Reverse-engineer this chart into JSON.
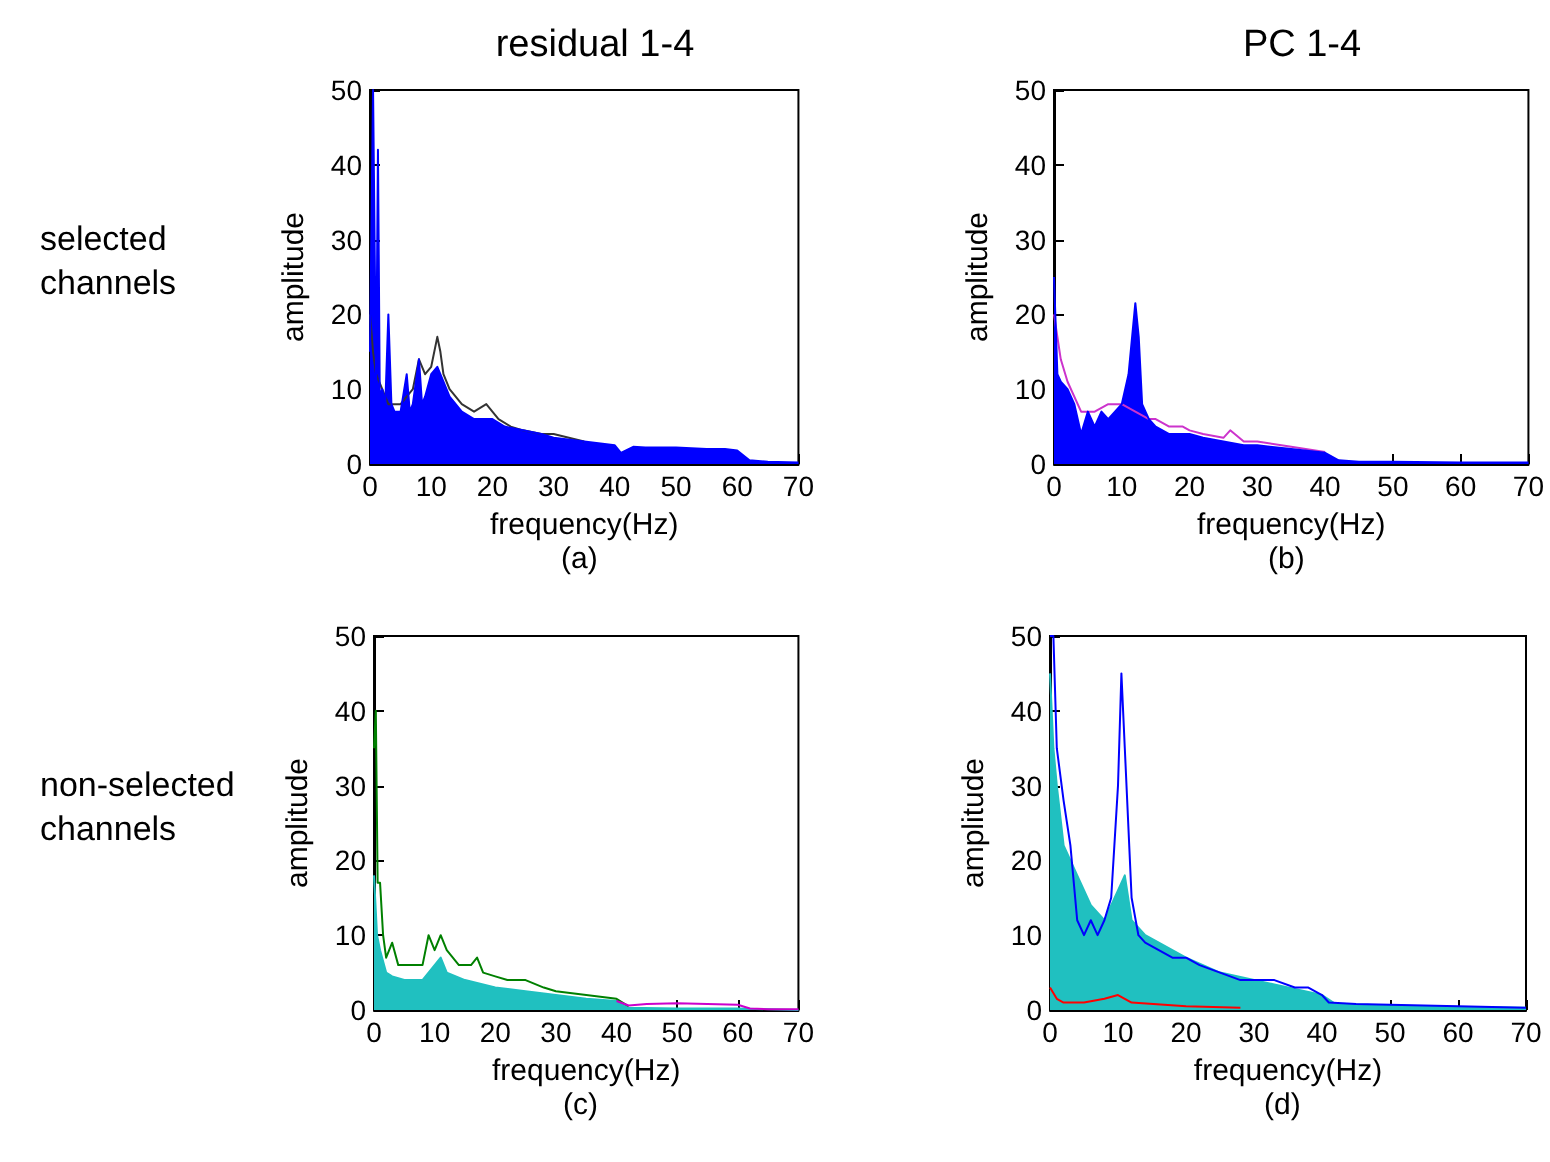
{
  "chart_data": [
    {
      "type": "area",
      "title": "residual 1-4",
      "xlabel": "frequency(Hz)",
      "ylabel": "amplitude",
      "annotations": [
        "(a)",
        "selected channels"
      ],
      "xlim": [
        0,
        70
      ],
      "ylim": [
        0,
        50
      ],
      "xticks": [
        0,
        10,
        20,
        30,
        40,
        50,
        60,
        70
      ],
      "yticks": [
        0,
        10,
        20,
        30,
        40,
        50
      ],
      "series": [
        {
          "type": "line",
          "color": "#333333",
          "x": [
            0,
            0.5,
            1,
            2,
            3,
            5,
            7,
            8,
            9,
            10,
            11,
            11.5,
            12,
            13,
            15,
            17,
            19,
            20,
            21,
            23,
            25,
            28,
            30,
            35
          ],
          "values": [
            20,
            15,
            12,
            10,
            8,
            8,
            10,
            14,
            12,
            13,
            17,
            15,
            12,
            10,
            8,
            7,
            8,
            7,
            6,
            5,
            4.5,
            4,
            4,
            3
          ]
        },
        {
          "color": "#0000ff",
          "x": [
            0,
            0.5,
            1,
            1.3,
            1.6,
            2,
            2.5,
            3,
            3.5,
            4,
            5,
            6,
            6.5,
            7,
            8,
            8.5,
            9,
            10,
            11,
            12,
            13,
            14,
            15,
            17,
            18,
            20,
            22,
            25,
            28,
            30,
            35,
            40,
            41,
            43,
            45,
            50,
            55,
            58,
            60,
            62,
            65,
            70
          ],
          "values": [
            15,
            50,
            10,
            42,
            9,
            10,
            8,
            20,
            8,
            7,
            7,
            12,
            7,
            8,
            14,
            8,
            9,
            12,
            13,
            11,
            9,
            8,
            7,
            6,
            6,
            6,
            5,
            4.5,
            4,
            3.5,
            3,
            2.5,
            1.5,
            2.3,
            2.2,
            2.2,
            2,
            2,
            1.8,
            0.5,
            0.3,
            0.2
          ]
        }
      ]
    },
    {
      "type": "area",
      "title": "PC 1-4",
      "xlabel": "frequency(Hz)",
      "ylabel": "amplitude",
      "annotations": [
        "(b)"
      ],
      "xlim": [
        0,
        70
      ],
      "ylim": [
        0,
        50
      ],
      "xticks": [
        0,
        10,
        20,
        30,
        40,
        50,
        60,
        70
      ],
      "yticks": [
        0,
        10,
        20,
        30,
        40,
        50
      ],
      "series": [
        {
          "type": "line",
          "color": "#cc33cc",
          "x": [
            0,
            1,
            2,
            4,
            6,
            8,
            10,
            14,
            15,
            17,
            19,
            20,
            22,
            25,
            26,
            28,
            30,
            35,
            40
          ],
          "values": [
            20,
            14,
            11,
            7,
            7,
            8,
            8,
            6,
            6,
            5,
            5,
            4.5,
            4,
            3.5,
            4.5,
            3,
            3,
            2.3,
            1.6
          ]
        },
        {
          "color": "#0000ff",
          "x": [
            0,
            0.5,
            1,
            2,
            3,
            4,
            5,
            6,
            7,
            8,
            9,
            10,
            11,
            12,
            12.5,
            13,
            14,
            15,
            17,
            20,
            22,
            25,
            28,
            30,
            35,
            40,
            42,
            45,
            50,
            60,
            70
          ],
          "values": [
            25,
            12,
            11,
            10,
            8,
            4,
            7,
            5,
            7,
            6,
            7,
            8,
            12,
            21.5,
            17,
            8,
            6,
            5,
            4,
            4,
            3.5,
            3,
            2.5,
            2.5,
            2,
            1.5,
            0.5,
            0.3,
            0.3,
            0.2,
            0.2
          ]
        }
      ]
    },
    {
      "type": "area",
      "xlabel": "frequency(Hz)",
      "ylabel": "amplitude",
      "annotations": [
        "(c)",
        "non-selected channels"
      ],
      "xlim": [
        0,
        70
      ],
      "ylim": [
        0,
        50
      ],
      "xticks": [
        0,
        10,
        20,
        30,
        40,
        50,
        60,
        70
      ],
      "yticks": [
        0,
        10,
        20,
        30,
        40,
        50
      ],
      "series": [
        {
          "color": "#20c0c0",
          "x": [
            0,
            0.5,
            1,
            2,
            3,
            5,
            8,
            10,
            11,
            12,
            15,
            20,
            25,
            30,
            35,
            40,
            42,
            50,
            60,
            70
          ],
          "values": [
            18,
            10,
            8,
            5,
            4.5,
            4,
            4,
            6,
            7,
            5,
            4,
            3,
            2.5,
            2,
            1.5,
            1.2,
            0.3,
            0.2,
            0.2,
            0
          ]
        },
        {
          "type": "line",
          "color": "#008000",
          "x": [
            0,
            0.3,
            0.6,
            1,
            1.5,
            2,
            3,
            4,
            6,
            8,
            9,
            10,
            11,
            12,
            14,
            16,
            17,
            18,
            20,
            22,
            25,
            28,
            30,
            35,
            40,
            42
          ],
          "values": [
            35,
            40,
            17,
            17,
            10,
            7,
            9,
            6,
            6,
            6,
            10,
            8,
            10,
            8,
            6,
            6,
            7,
            5,
            4.5,
            4,
            4,
            3,
            2.5,
            2,
            1.5,
            0.5
          ]
        },
        {
          "type": "line",
          "color": "#cc00cc",
          "x": [
            40,
            42,
            45,
            50,
            55,
            60,
            62,
            65,
            70
          ],
          "values": [
            1.2,
            0.6,
            0.8,
            0.9,
            0.8,
            0.7,
            0.2,
            0.1,
            0.1
          ]
        }
      ]
    },
    {
      "type": "area",
      "xlabel": "frequency(Hz)",
      "ylabel": "amplitude",
      "annotations": [
        "(d)"
      ],
      "xlim": [
        0,
        70
      ],
      "ylim": [
        0,
        50
      ],
      "xticks": [
        0,
        10,
        20,
        30,
        40,
        50,
        60,
        70
      ],
      "yticks": [
        0,
        10,
        20,
        30,
        40,
        50
      ],
      "series": [
        {
          "color": "#20c0c0",
          "x": [
            0,
            0.5,
            1,
            2,
            3,
            4,
            6,
            8,
            10,
            11,
            12,
            14,
            16,
            20,
            25,
            30,
            35,
            40,
            42,
            50,
            60,
            70
          ],
          "values": [
            45,
            35,
            30,
            22,
            20,
            18,
            14,
            12,
            16,
            18,
            12,
            10,
            9,
            7,
            5,
            4,
            3,
            2,
            0.8,
            0.6,
            0.4,
            0.3
          ]
        },
        {
          "type": "line",
          "color": "#0000ff",
          "x": [
            0,
            0.5,
            1,
            2,
            3,
            4,
            5,
            6,
            7,
            8,
            9,
            10,
            10.5,
            11,
            12,
            13,
            14,
            16,
            18,
            20,
            22,
            25,
            28,
            30,
            33,
            36,
            38,
            40,
            41,
            45,
            50,
            60,
            70
          ],
          "values": [
            50,
            50,
            35,
            28,
            22,
            12,
            10,
            12,
            10,
            12,
            15,
            30,
            45,
            35,
            15,
            10,
            9,
            8,
            7,
            7,
            6,
            5,
            4,
            4,
            4,
            3,
            3,
            2,
            1,
            0.8,
            0.7,
            0.5,
            0.3
          ]
        },
        {
          "type": "line",
          "color": "#ff0000",
          "x": [
            0,
            1,
            2,
            5,
            8,
            10,
            12,
            20,
            28
          ],
          "values": [
            3,
            1.5,
            1,
            1,
            1.5,
            2,
            1,
            0.5,
            0.3
          ]
        }
      ]
    }
  ]
}
